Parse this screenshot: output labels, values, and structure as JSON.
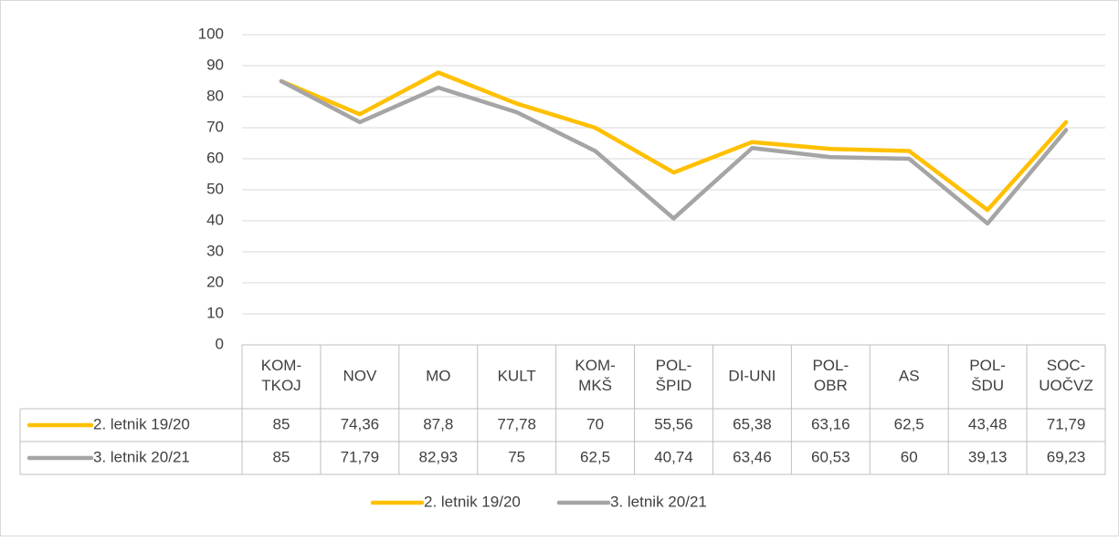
{
  "chart_data": {
    "type": "line",
    "categories": [
      "KOM-\nTKOJ",
      "NOV",
      "MO",
      "KULT",
      "KOM-\nMKŠ",
      "POL-\nŠPID",
      "DI-UNI",
      "POL-\nOBR",
      "AS",
      "POL-\nŠDU",
      "SOC-\nUOČVZ"
    ],
    "series": [
      {
        "name": "2. letnik 19/20",
        "color": "#FFC000",
        "values": [
          85,
          74.36,
          87.8,
          77.78,
          70,
          55.56,
          65.38,
          63.16,
          62.5,
          43.48,
          71.79
        ],
        "value_labels": [
          "85",
          "74,36",
          "87,8",
          "77,78",
          "70",
          "55,56",
          "65,38",
          "63,16",
          "62,5",
          "43,48",
          "71,79"
        ]
      },
      {
        "name": "3. letnik 20/21",
        "color": "#A5A5A5",
        "values": [
          85,
          71.79,
          82.93,
          75,
          62.5,
          40.74,
          63.46,
          60.53,
          60,
          39.13,
          69.23
        ],
        "value_labels": [
          "85",
          "71,79",
          "82,93",
          "75",
          "62,5",
          "40,74",
          "63,46",
          "60,53",
          "60",
          "39,13",
          "69,23"
        ]
      }
    ],
    "ylim": [
      0,
      100
    ],
    "yticks": [
      0,
      10,
      20,
      30,
      40,
      50,
      60,
      70,
      80,
      90,
      100
    ],
    "grid": true,
    "legend": "bottom"
  }
}
